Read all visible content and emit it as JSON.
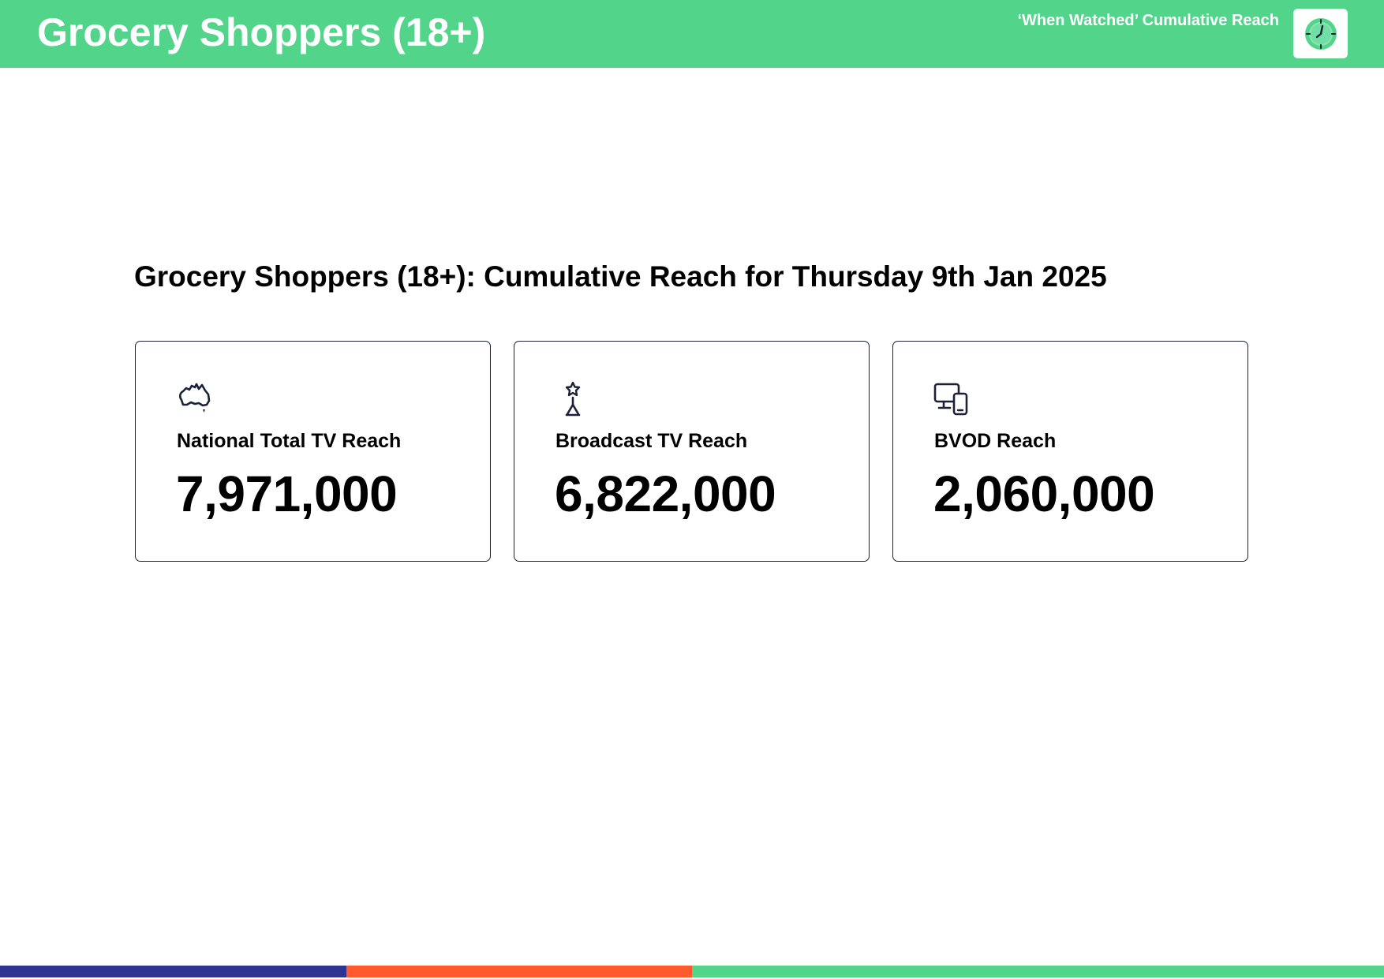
{
  "header": {
    "title": "Grocery Shoppers (18+)",
    "subtitle": "‘When Watched’ Cumulative Reach",
    "logo_icon": "clock-icon",
    "background_color": "#52d48a"
  },
  "main": {
    "heading": "Grocery Shoppers (18+): Cumulative Reach for Thursday 9th Jan 2025"
  },
  "cards": [
    {
      "icon": "australia-map-icon",
      "label": "National Total TV Reach",
      "value": "7,971,000"
    },
    {
      "icon": "broadcast-tower-icon",
      "label": "Broadcast TV Reach",
      "value": "6,822,000"
    },
    {
      "icon": "devices-icon",
      "label": "BVOD Reach",
      "value": "2,060,000"
    }
  ],
  "footer": {
    "colors": [
      "#2e3590",
      "#ff5a2d",
      "#52d48a",
      "#52d48a"
    ]
  }
}
